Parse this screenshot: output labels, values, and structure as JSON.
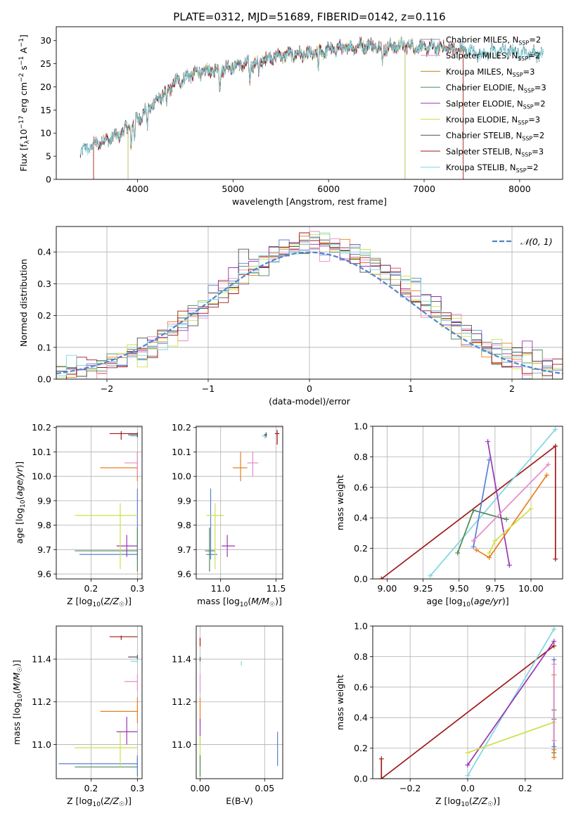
{
  "figure_title": "PLATE=0312, MJD=51689, FIBERID=0142, z=0.116",
  "colors": {
    "Chabrier MILES": "#8c8cb4",
    "Salpeter MILES": "#e68cc8",
    "Kroupa MILES": "#c08a1e",
    "Chabrier ELODIE": "#4e8a5a",
    "Salpeter ELODIE": "#9b34b4",
    "Kroupa ELODIE": "#cde04a",
    "Chabrier STELIB": "#505050",
    "Salpeter STELIB": "#a01818",
    "Kroupa STELIB": "#7fd6e0",
    "hist_blue": "#5b7fd6",
    "hist_orange": "#e87d1e",
    "normal_line": "#4f86c6"
  },
  "chart_data": [
    {
      "id": "spectrum",
      "type": "line",
      "xlabel": "wavelength [Angstrom, rest frame]",
      "ylabel": "Flux [f_λ 10^-17 erg cm^-2 s^-1 A^-1]",
      "xlim": [
        3150,
        8450
      ],
      "ylim": [
        0,
        33
      ],
      "xticks": [
        4000,
        5000,
        6000,
        7000,
        8000
      ],
      "yticks": [
        0,
        5,
        10,
        15,
        20,
        25,
        30
      ],
      "grid": false,
      "legend": "right",
      "legend_entries": [
        {
          "name": "Chabrier MILES",
          "nssp": "2"
        },
        {
          "name": "Salpeter MILES",
          "nssp": "2"
        },
        {
          "name": "Kroupa MILES",
          "nssp": "3"
        },
        {
          "name": "Chabrier ELODIE",
          "nssp": "3"
        },
        {
          "name": "Salpeter ELODIE",
          "nssp": "2"
        },
        {
          "name": "Kroupa ELODIE",
          "nssp": "3"
        },
        {
          "name": "Chabrier STELIB",
          "nssp": "2"
        },
        {
          "name": "Salpeter STELIB",
          "nssp": "3"
        },
        {
          "name": "Kroupa STELIB",
          "nssp": "2"
        }
      ],
      "continuum": [
        [
          3400,
          6
        ],
        [
          3600,
          8
        ],
        [
          3800,
          9.5
        ],
        [
          4000,
          13
        ],
        [
          4200,
          17
        ],
        [
          4400,
          21
        ],
        [
          4600,
          23
        ],
        [
          4800,
          23.5
        ],
        [
          5000,
          24.5
        ],
        [
          5200,
          25
        ],
        [
          5400,
          26.5
        ],
        [
          5600,
          27
        ],
        [
          5800,
          27
        ],
        [
          6000,
          28
        ],
        [
          6200,
          28.5
        ],
        [
          6400,
          29
        ],
        [
          6600,
          28.5
        ],
        [
          6800,
          29
        ],
        [
          7000,
          28.5
        ],
        [
          7200,
          28.5
        ],
        [
          7400,
          28
        ],
        [
          7600,
          27
        ],
        [
          7800,
          28
        ],
        [
          8000,
          27.5
        ],
        [
          8200,
          27
        ],
        [
          8250,
          27
        ]
      ],
      "absorption_lines": [
        3934,
        3969,
        4102,
        4304,
        4861,
        5175,
        5270,
        5893,
        6563
      ],
      "model_ranges": {
        "Chabrier MILES": [
          3540,
          7410
        ],
        "Salpeter MILES": [
          3540,
          7410
        ],
        "Kroupa MILES": [
          3540,
          7410
        ],
        "Chabrier ELODIE": [
          3900,
          6800
        ],
        "Salpeter ELODIE": [
          3900,
          6800
        ],
        "Kroupa ELODIE": [
          3900,
          6800
        ],
        "Chabrier STELIB": [
          3400,
          8250
        ],
        "Salpeter STELIB": [
          3540,
          7410
        ],
        "Kroupa STELIB": [
          3400,
          8250
        ]
      }
    },
    {
      "id": "residual_hist",
      "type": "line",
      "xlabel": "(data-model)/error",
      "ylabel": "Normed distribution",
      "xlim": [
        -2.5,
        2.5
      ],
      "ylim": [
        0,
        0.48
      ],
      "xticks": [
        -2,
        -1,
        0,
        1,
        2
      ],
      "yticks": [
        0.0,
        0.1,
        0.2,
        0.3,
        0.4
      ],
      "grid": true,
      "legend": "top-right",
      "legend_label": "𝒩(0, 1)",
      "bin_width": 0.1,
      "n_histograms": 9
    },
    {
      "id": "age_vs_Z",
      "type": "scatter",
      "xlabel": "Z [log10(Z/Z☉)]",
      "ylabel": "age [log10(age/yr)]",
      "xlim": [
        0.125,
        0.31
      ],
      "ylim": [
        9.58,
        10.205
      ],
      "xticks": [
        0.2,
        0.3
      ],
      "yticks": [
        9.6,
        9.7,
        9.8,
        9.9,
        10.0,
        10.1,
        10.2
      ],
      "grid": true,
      "points": [
        {
          "series": "hist_blue",
          "x": 0.3,
          "y": 9.68,
          "xerr": [
            0.175,
            0.3
          ],
          "yerr": [
            9.66,
            9.95
          ]
        },
        {
          "series": "Chabrier ELODIE",
          "x": 0.3,
          "y": 9.695,
          "xerr": [
            0.165,
            0.3
          ],
          "yerr": [
            9.61,
            9.79
          ]
        },
        {
          "series": "Salpeter ELODIE",
          "x": 0.277,
          "y": 9.715,
          "xerr": [
            0.255,
            0.3
          ],
          "yerr": [
            9.67,
            9.76
          ]
        },
        {
          "series": "Kroupa ELODIE",
          "x": 0.263,
          "y": 9.84,
          "xerr": [
            0.165,
            0.3
          ],
          "yerr": [
            9.62,
            9.89
          ]
        },
        {
          "series": "hist_orange",
          "x": 0.3,
          "y": 10.035,
          "xerr": [
            0.22,
            0.3
          ],
          "yerr": [
            9.98,
            10.1
          ]
        },
        {
          "series": "Salpeter MILES",
          "x": 0.3,
          "y": 10.055,
          "xerr": [
            0.272,
            0.3
          ],
          "yerr": [
            10.0,
            10.1
          ]
        },
        {
          "series": "Kroupa STELIB",
          "x": 0.3,
          "y": 10.165,
          "xerr": [
            0.285,
            0.3
          ],
          "yerr": [
            10.155,
            10.175
          ]
        },
        {
          "series": "Chabrier STELIB",
          "x": 0.3,
          "y": 10.17,
          "xerr": [
            0.28,
            0.3
          ],
          "yerr": [
            10.16,
            10.18
          ]
        },
        {
          "series": "Salpeter STELIB",
          "x": 0.265,
          "y": 10.175,
          "xerr": [
            0.24,
            0.3
          ],
          "yerr": [
            10.15,
            10.185
          ]
        }
      ]
    },
    {
      "id": "age_vs_mass",
      "type": "scatter",
      "xlabel": "mass [log10(M/M☉)]",
      "ylabel": "",
      "xlim": [
        10.78,
        11.56
      ],
      "ylim": [
        9.58,
        10.205
      ],
      "xticks": [
        11.0,
        11.5
      ],
      "yticks": [
        9.6,
        9.7,
        9.8,
        9.9,
        10.0,
        10.1,
        10.2
      ],
      "grid": true,
      "points": [
        {
          "series": "hist_blue",
          "x": 10.91,
          "y": 9.68,
          "xerr": [
            10.87,
            10.97
          ],
          "yerr": [
            9.66,
            9.95
          ]
        },
        {
          "series": "Chabrier ELODIE",
          "x": 10.9,
          "y": 9.695,
          "xerr": [
            10.86,
            10.95
          ],
          "yerr": [
            9.61,
            9.79
          ]
        },
        {
          "series": "Salpeter ELODIE",
          "x": 11.06,
          "y": 9.715,
          "xerr": [
            11.01,
            11.13
          ],
          "yerr": [
            9.67,
            9.76
          ]
        },
        {
          "series": "Kroupa ELODIE",
          "x": 10.95,
          "y": 9.84,
          "xerr": [
            10.87,
            11.03
          ],
          "yerr": [
            9.62,
            9.89
          ]
        },
        {
          "series": "hist_orange",
          "x": 11.18,
          "y": 10.035,
          "xerr": [
            11.11,
            11.24
          ],
          "yerr": [
            9.98,
            10.1
          ]
        },
        {
          "series": "Salpeter MILES",
          "x": 11.29,
          "y": 10.055,
          "xerr": [
            11.24,
            11.34
          ],
          "yerr": [
            10.0,
            10.1
          ]
        },
        {
          "series": "Kroupa STELIB",
          "x": 11.4,
          "y": 10.165,
          "xerr": [
            11.37,
            11.41
          ],
          "yerr": [
            10.155,
            10.175
          ]
        },
        {
          "series": "Chabrier STELIB",
          "x": 11.41,
          "y": 10.17,
          "xerr": [
            11.39,
            11.42
          ],
          "yerr": [
            10.16,
            10.18
          ]
        },
        {
          "series": "Salpeter STELIB",
          "x": 11.51,
          "y": 10.175,
          "xerr": [
            11.49,
            11.53
          ],
          "yerr": [
            10.13,
            10.19
          ]
        }
      ]
    },
    {
      "id": "weight_vs_age",
      "type": "line",
      "xlabel": "age [log10(age/yr)]",
      "ylabel": "mass weight",
      "xlim": [
        8.9,
        10.22
      ],
      "ylim": [
        0,
        1.0
      ],
      "xticks": [
        9.0,
        9.25,
        9.5,
        9.75,
        10.0
      ],
      "yticks": [
        0.0,
        0.2,
        0.4,
        0.6,
        0.8,
        1.0
      ],
      "grid": true,
      "series": [
        {
          "name": "Salpeter STELIB",
          "points": [
            [
              8.96,
              0.0
            ],
            [
              10.17,
              0.87
            ],
            [
              10.17,
              0.13
            ]
          ]
        },
        {
          "name": "Kroupa STELIB",
          "points": [
            [
              9.3,
              0.02
            ],
            [
              10.17,
              0.98
            ]
          ]
        },
        {
          "name": "Chabrier ELODIE",
          "points": [
            [
              9.49,
              0.17
            ],
            [
              9.6,
              0.45
            ],
            [
              9.83,
              0.39
            ]
          ]
        },
        {
          "name": "Salpeter ELODIE",
          "points": [
            [
              9.7,
              0.9
            ],
            [
              9.85,
              0.09
            ]
          ]
        },
        {
          "name": "hist_blue",
          "points": [
            [
              9.6,
              0.21
            ],
            [
              9.71,
              0.78
            ]
          ]
        },
        {
          "name": "hist_orange",
          "points": [
            [
              9.62,
              0.19
            ],
            [
              9.71,
              0.14
            ],
            [
              10.11,
              0.68
            ]
          ]
        },
        {
          "name": "Salpeter MILES",
          "points": [
            [
              9.6,
              0.25
            ],
            [
              10.12,
              0.75
            ]
          ]
        },
        {
          "name": "Kroupa ELODIE",
          "points": [
            [
              9.71,
              0.17
            ],
            [
              9.75,
              0.25
            ],
            [
              10.0,
              0.46
            ]
          ]
        }
      ]
    },
    {
      "id": "mass_vs_Z",
      "type": "scatter",
      "xlabel": "Z [log10(Z/Z☉)]",
      "ylabel": "mass [log10(M/M☉)]",
      "xlim": [
        0.125,
        0.31
      ],
      "ylim": [
        10.84,
        11.555
      ],
      "xticks": [
        0.2,
        0.3
      ],
      "yticks": [
        11.0,
        11.2,
        11.4
      ],
      "grid": true,
      "points": [
        {
          "series": "Chabrier ELODIE",
          "x": 0.3,
          "y": 10.895,
          "xerr": [
            0.165,
            0.3
          ],
          "yerr": [
            10.85,
            10.94
          ]
        },
        {
          "series": "hist_blue",
          "x": 0.3,
          "y": 10.91,
          "xerr": [
            0.13,
            0.3
          ],
          "yerr": [
            10.87,
            10.95
          ]
        },
        {
          "series": "Kroupa ELODIE",
          "x": 0.263,
          "y": 10.985,
          "xerr": [
            0.165,
            0.3
          ],
          "yerr": [
            10.89,
            11.06
          ]
        },
        {
          "series": "Salpeter ELODIE",
          "x": 0.277,
          "y": 11.06,
          "xerr": [
            0.255,
            0.3
          ],
          "yerr": [
            11.0,
            11.13
          ]
        },
        {
          "series": "hist_orange",
          "x": 0.3,
          "y": 11.155,
          "xerr": [
            0.22,
            0.3
          ],
          "yerr": [
            11.1,
            11.22
          ]
        },
        {
          "series": "Salpeter MILES",
          "x": 0.3,
          "y": 11.295,
          "xerr": [
            0.272,
            0.3
          ],
          "yerr": [
            11.25,
            11.33
          ]
        },
        {
          "series": "Kroupa STELIB",
          "x": 0.3,
          "y": 11.39,
          "xerr": [
            0.285,
            0.3
          ],
          "yerr": [
            11.38,
            11.4
          ]
        },
        {
          "series": "Chabrier STELIB",
          "x": 0.3,
          "y": 11.41,
          "xerr": [
            0.28,
            0.3
          ],
          "yerr": [
            11.4,
            11.42
          ]
        },
        {
          "series": "Salpeter STELIB",
          "x": 0.265,
          "y": 11.505,
          "xerr": [
            0.24,
            0.3
          ],
          "yerr": [
            11.49,
            11.51
          ]
        }
      ]
    },
    {
      "id": "mass_vs_ebv",
      "type": "scatter",
      "xlabel": "E(B-V)",
      "ylabel": "",
      "xlim": [
        -0.003,
        0.064
      ],
      "ylim": [
        10.84,
        11.555
      ],
      "xticks": [
        0.0,
        0.05
      ],
      "yticks": [
        11.0,
        11.2,
        11.4
      ],
      "grid": true,
      "points": [
        {
          "series": "hist_blue",
          "x": 0.06,
          "y": 10.99,
          "xerr": [
            0.06,
            0.06
          ],
          "yerr": [
            10.9,
            11.06
          ]
        },
        {
          "series": "Kroupa STELIB",
          "x": 0.032,
          "y": 11.38,
          "xerr": [
            0.032,
            0.032
          ],
          "yerr": [
            11.37,
            11.39
          ]
        },
        {
          "series": "Salpeter STELIB",
          "x": 0.0,
          "y": 11.48,
          "xerr": [
            0.0,
            0.0
          ],
          "yerr": [
            11.46,
            11.5
          ]
        },
        {
          "series": "Chabrier STELIB",
          "x": 0.0,
          "y": 11.4,
          "xerr": [
            0.0,
            0.0
          ],
          "yerr": [
            11.39,
            11.41
          ]
        },
        {
          "series": "Salpeter MILES",
          "x": 0.0,
          "y": 11.29,
          "xerr": [
            0.0,
            0.0
          ],
          "yerr": [
            11.24,
            11.33
          ]
        },
        {
          "series": "hist_orange",
          "x": 0.0,
          "y": 11.15,
          "xerr": [
            0.0,
            0.0
          ],
          "yerr": [
            11.1,
            11.22
          ]
        },
        {
          "series": "Salpeter ELODIE",
          "x": 0.0,
          "y": 11.06,
          "xerr": [
            0.0,
            0.0
          ],
          "yerr": [
            11.0,
            11.12
          ]
        },
        {
          "series": "Kroupa ELODIE",
          "x": 0.0,
          "y": 10.97,
          "xerr": [
            0.0,
            0.0
          ],
          "yerr": [
            10.87,
            11.04
          ]
        },
        {
          "series": "Chabrier ELODIE",
          "x": 0.0,
          "y": 10.9,
          "xerr": [
            0.0,
            0.0
          ],
          "yerr": [
            10.85,
            10.95
          ]
        }
      ]
    },
    {
      "id": "weight_vs_Z",
      "type": "line",
      "xlabel": "Z [log10(Z/Z☉)]",
      "ylabel": "mass weight",
      "xlim": [
        -0.33,
        0.33
      ],
      "ylim": [
        0,
        1.0
      ],
      "xticks": [
        -0.2,
        0.0,
        0.2
      ],
      "yticks": [
        0.0,
        0.2,
        0.4,
        0.6,
        0.8,
        1.0
      ],
      "grid": true,
      "series": [
        {
          "name": "Salpeter STELIB",
          "points": [
            [
              -0.3,
              0.13
            ],
            [
              -0.3,
              0.0
            ],
            [
              0.3,
              0.87
            ]
          ]
        },
        {
          "name": "Kroupa STELIB",
          "points": [
            [
              0.0,
              0.02
            ],
            [
              0.3,
              0.98
            ]
          ]
        },
        {
          "name": "Salpeter ELODIE",
          "points": [
            [
              0.0,
              0.09
            ],
            [
              0.3,
              0.9
            ]
          ]
        },
        {
          "name": "Kroupa ELODIE",
          "points": [
            [
              0.0,
              0.17
            ],
            [
              0.3,
              0.37
            ]
          ]
        },
        {
          "name": "Chabrier ELODIE",
          "points": [
            [
              0.3,
              0.17
            ],
            [
              0.3,
              0.45
            ],
            [
              0.3,
              0.39
            ]
          ]
        },
        {
          "name": "hist_orange",
          "points": [
            [
              0.3,
              0.14
            ],
            [
              0.3,
              0.19
            ],
            [
              0.3,
              0.68
            ]
          ]
        },
        {
          "name": "hist_blue",
          "points": [
            [
              0.3,
              0.21
            ],
            [
              0.3,
              0.78
            ]
          ]
        },
        {
          "name": "Salpeter MILES",
          "points": [
            [
              0.3,
              0.25
            ],
            [
              0.3,
              0.75
            ]
          ]
        }
      ]
    }
  ]
}
